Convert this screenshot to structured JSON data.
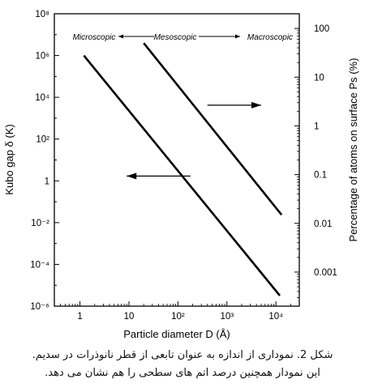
{
  "chart_data": {
    "type": "line",
    "xlabel": "Particle diameter D (Å)",
    "ylabel_left": "Kubo gap δ (K)",
    "ylabel_right": "Percentage of atoms on surface Ps (%)",
    "x_scale": "log",
    "left_y_scale": "log",
    "right_y_scale": "log",
    "xlim": [
      0.3,
      30000
    ],
    "left_ylim": [
      1e-06,
      100000000
    ],
    "right_ylim": [
      0.0002,
      200
    ],
    "x_ticks": [
      "1",
      "10",
      "10²",
      "10³",
      "10⁴"
    ],
    "left_y_ticks": [
      "10⁻⁶",
      "10⁻⁴",
      "10⁻²",
      "1",
      "10²",
      "10⁴",
      "10⁶",
      "10⁸"
    ],
    "right_y_ticks": [
      "0.001",
      "0.01",
      "0.1",
      "1",
      "10",
      "100"
    ],
    "series": [
      {
        "axis": "left",
        "x": [
          1.2,
          12000
        ],
        "y": [
          1000000,
          3.2e-06
        ]
      },
      {
        "axis": "right",
        "x": [
          20,
          13000
        ],
        "y": [
          50,
          0.015
        ]
      }
    ],
    "arrows": [
      {
        "direction": "left",
        "x": [
          180,
          9
        ],
        "y_left": [
          1.7,
          1.7
        ]
      },
      {
        "direction": "right",
        "x": [
          400,
          5000
        ],
        "y_left": [
          4200,
          4200
        ]
      }
    ],
    "regions": [
      "Microscopic",
      "Mesoscopic",
      "Macroscopic"
    ],
    "grid": false
  },
  "caption": {
    "line1": "شکل 2. نموداری از اندازه به عنوان تابعی از قطر نانوذرات در سدیم.",
    "line2": "این نمودار همچنین درصد اتم های سطحی را هم نشان می دهد."
  }
}
